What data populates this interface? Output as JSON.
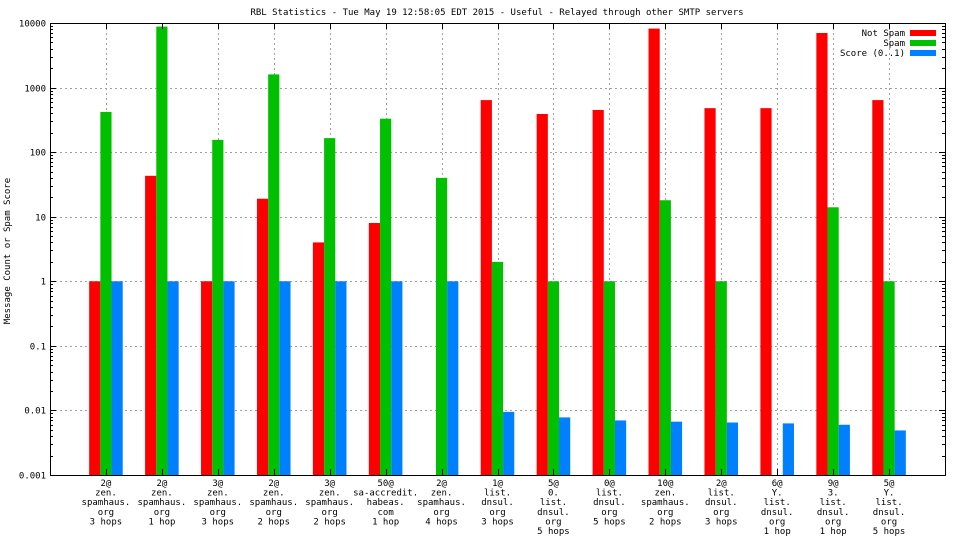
{
  "chart_data": {
    "type": "bar",
    "title": "RBL Statistics - Tue May 19 12:58:05 EDT 2015 - Useful - Relayed through other SMTP servers",
    "ylabel": "Message Count or Spam Score",
    "xlabel": "",
    "yscale": "log",
    "ylim": [
      0.001,
      10000
    ],
    "yticks": [
      "0.001",
      "0.01",
      "0.1",
      "1",
      "10",
      "100",
      "1000",
      "10000"
    ],
    "grid": true,
    "legend_position": "top-right",
    "categories": [
      [
        "2@",
        "zen.",
        "spamhaus.",
        "org",
        "3 hops"
      ],
      [
        "2@",
        "zen.",
        "spamhaus.",
        "org",
        "1 hop"
      ],
      [
        "3@",
        "zen.",
        "spamhaus.",
        "org",
        "3 hops"
      ],
      [
        "2@",
        "zen.",
        "spamhaus.",
        "org",
        "2 hops"
      ],
      [
        "3@",
        "zen.",
        "spamhaus.",
        "org",
        "2 hops"
      ],
      [
        "50@",
        "sa-accredit.",
        "habeas.",
        "com",
        "1 hop"
      ],
      [
        "2@",
        "zen.",
        "spamhaus.",
        "org",
        "4 hops"
      ],
      [
        "1@",
        "list.",
        "dnsul.",
        "org",
        "3 hops"
      ],
      [
        "5@",
        "0.",
        "list.",
        "dnsul.",
        "org",
        "5 hops"
      ],
      [
        "0@",
        "list.",
        "dnsul.",
        "org",
        "5 hops"
      ],
      [
        "10@",
        "zen.",
        "spamhaus.",
        "org",
        "2 hops"
      ],
      [
        "2@",
        "list.",
        "dnsul.",
        "org",
        "3 hops"
      ],
      [
        "6@",
        "Y.",
        "list.",
        "dnsul.",
        "org",
        "1 hop"
      ],
      [
        "9@",
        "3.",
        "list.",
        "dnsul.",
        "org",
        "1 hop"
      ],
      [
        "5@",
        "Y.",
        "list.",
        "dnsul.",
        "org",
        "5 hops"
      ]
    ],
    "series": [
      {
        "name": "Not Spam",
        "color": "#ff0000",
        "values": [
          1,
          43,
          1,
          19,
          4,
          8,
          null,
          640,
          390,
          450,
          8200,
          480,
          480,
          7000,
          640
        ]
      },
      {
        "name": "Spam",
        "color": "#00c000",
        "values": [
          420,
          8800,
          155,
          1600,
          165,
          330,
          40,
          2,
          1,
          1,
          18,
          1,
          null,
          14,
          1
        ]
      },
      {
        "name": "Score (0..1)",
        "color": "#0080ff",
        "values": [
          1,
          1,
          1,
          1,
          1,
          1,
          1,
          0.0095,
          0.0078,
          0.007,
          0.0067,
          0.0065,
          0.0063,
          0.006,
          0.0049
        ]
      }
    ]
  }
}
